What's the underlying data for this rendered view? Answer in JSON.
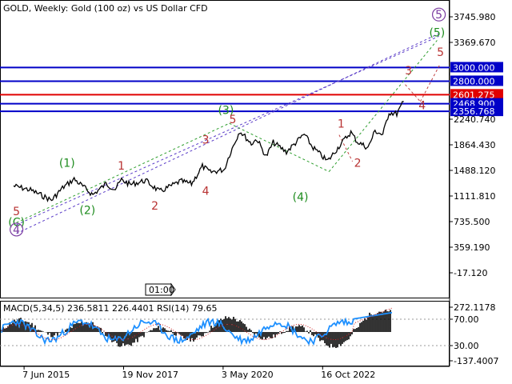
{
  "chart_data": [
    {
      "type": "line",
      "title": "GOLD, Weekly:  Gold (100 oz) vs US Dollar CFD",
      "y_ticks": [
        "3745.980",
        "3369.670",
        "2240.740",
        "1864.430",
        "1488.120",
        "1111.810",
        "735.500",
        "359.190",
        "-17.120"
      ],
      "ylim": [
        -17.12,
        3745.98
      ],
      "x_ticks": [
        "7 Jun 2015",
        "19 Nov 2017",
        "3 May 2020",
        "16 Oct 2022"
      ],
      "x_range": [
        "2014-12-01",
        "2025-12-31"
      ],
      "h_levels": [
        {
          "value": 3000.0,
          "label": "3000.000",
          "color": "#0000c8"
        },
        {
          "value": 2800.0,
          "label": "2800.000",
          "color": "#0000c8"
        },
        {
          "value": 2601.275,
          "label": "2601.275",
          "color": "#e00000"
        },
        {
          "value": 2468.9,
          "label": "2468.900",
          "color": "#0000c8"
        },
        {
          "value": 2356.768,
          "label": "2356.768",
          "color": "#0000c8"
        }
      ],
      "series": [
        {
          "x": [
            "2015-01-05",
            "2015-06-07",
            "2015-12-14",
            "2016-03-21",
            "2016-07-04",
            "2016-12-19",
            "2017-04-17",
            "2017-07-10",
            "2017-09-04",
            "2017-11-19",
            "2018-04-09",
            "2018-08-13",
            "2019-02-18",
            "2019-05-27",
            "2019-09-02",
            "2019-11-11",
            "2020-03-16",
            "2020-05-03",
            "2020-08-03",
            "2020-11-16",
            "2021-01-04",
            "2021-03-29",
            "2021-06-01",
            "2021-09-27",
            "2022-03-07",
            "2022-05-16",
            "2022-09-26",
            "2022-10-16",
            "2023-02-06",
            "2023-05-01",
            "2023-06-26",
            "2023-10-02",
            "2023-12-04",
            "2024-02-12",
            "2024-04-08",
            "2024-06-17",
            "2024-08-19"
          ],
          "values": [
            1260,
            1200,
            1050,
            1230,
            1360,
            1130,
            1290,
            1215,
            1350,
            1280,
            1340,
            1175,
            1330,
            1290,
            1550,
            1460,
            1500,
            1720,
            2070,
            1880,
            1950,
            1690,
            1900,
            1760,
            2020,
            1840,
            1630,
            1650,
            1890,
            2050,
            1910,
            1820,
            2070,
            2010,
            2340,
            2320,
            2500
          ]
        }
      ],
      "annotations": [
        {
          "text": "(1)",
          "x": "2016-05-01",
          "y": 1540,
          "color": "#1e8c1e"
        },
        {
          "text": "(2)",
          "x": "2016-11-01",
          "y": 850,
          "color": "#1e8c1e"
        },
        {
          "text": "(3)",
          "x": "2020-04-01",
          "y": 2320,
          "color": "#1e8c1e"
        },
        {
          "text": "(4)",
          "x": "2022-02-01",
          "y": 1040,
          "color": "#1e8c1e"
        },
        {
          "text": "(5)",
          "x": "2025-06-15",
          "y": 3460,
          "color": "#1e8c1e"
        },
        {
          "text": "(C)",
          "x": "2015-02-01",
          "y": 670,
          "color": "#1e8c1e"
        },
        {
          "text": "1",
          "x": "2017-09-01",
          "y": 1500,
          "color": "#b83232"
        },
        {
          "text": "2",
          "x": "2018-07-01",
          "y": 910,
          "color": "#b83232"
        },
        {
          "text": "3",
          "x": "2019-10-01",
          "y": 1880,
          "color": "#b83232"
        },
        {
          "text": "4",
          "x": "2019-10-01",
          "y": 1130,
          "color": "#b83232"
        },
        {
          "text": "5",
          "x": "2020-06-01",
          "y": 2180,
          "color": "#b83232"
        },
        {
          "text": "5",
          "x": "2015-02-01",
          "y": 830,
          "color": "#b83232"
        },
        {
          "text": "1",
          "x": "2023-02-01",
          "y": 2120,
          "color": "#b83232"
        },
        {
          "text": "2",
          "x": "2023-07-01",
          "y": 1540,
          "color": "#b83232"
        },
        {
          "text": "3",
          "x": "2024-10-01",
          "y": 2900,
          "color": "#b83232"
        },
        {
          "text": "4",
          "x": "2025-02-01",
          "y": 2390,
          "color": "#b83232"
        },
        {
          "text": "5",
          "x": "2025-07-15",
          "y": 3170,
          "color": "#b83232"
        }
      ],
      "circled_labels": [
        {
          "text": "5",
          "x": "2025-07-01",
          "y": 3720,
          "color": "#7a3aa0"
        },
        {
          "text": "4",
          "x": "2015-02-01",
          "y": 560,
          "color": "#7a3aa0"
        }
      ],
      "time_box": "01:00"
    },
    {
      "type": "line",
      "title": "MACD(5,34,5) 236.5811 226.4401 RSI(14) 79.65",
      "y_ticks": [
        "272.1178",
        "70.00",
        "30.00",
        "-137.4007"
      ],
      "series": [
        {
          "name": "RSI(14)",
          "color": "#1e90ff"
        }
      ]
    }
  ]
}
